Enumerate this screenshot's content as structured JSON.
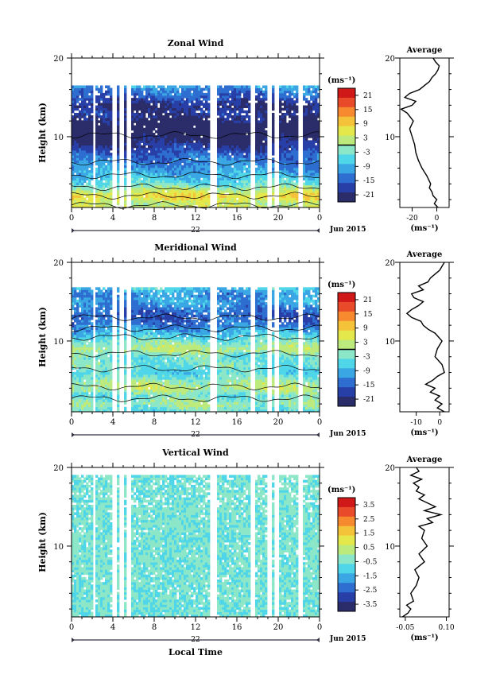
{
  "figure": {
    "date_label": "Jun 2015",
    "day_label": "22",
    "xlabel": "Local Time",
    "x_ticks": [
      "0",
      "4",
      "8",
      "12",
      "16",
      "20",
      "0"
    ],
    "height_ticks": [
      "20",
      "10"
    ],
    "units_label": "(ms⁻¹)",
    "avg_title": "Average",
    "avg_units": "(ms⁻¹)"
  },
  "chart_data": [
    {
      "type": "heatmap",
      "title": "Zonal Wind",
      "ylabel": "Height (km)",
      "xlim": [
        0,
        24
      ],
      "ylim": [
        1,
        20
      ],
      "colorbar": {
        "ticks": [
          "21",
          "15",
          "9",
          "3",
          "-3",
          "-9",
          "-15",
          "-21"
        ],
        "range": [
          -24,
          24
        ]
      },
      "data_top_km": 16.5,
      "gaps_hours": [
        2.2,
        4.1,
        4.9,
        5.6,
        13.7,
        13.9,
        17.6,
        19.1,
        19.8,
        22.1
      ],
      "profile_knots": [
        [
          1,
          5
        ],
        [
          1.5,
          2
        ],
        [
          2.5,
          8
        ],
        [
          3,
          4
        ],
        [
          4,
          -4
        ],
        [
          5,
          -8
        ],
        [
          6,
          -11
        ],
        [
          7,
          -13
        ],
        [
          8,
          -16
        ],
        [
          9,
          -20
        ],
        [
          10,
          -23
        ],
        [
          11,
          -25
        ],
        [
          12,
          -22
        ],
        [
          13,
          -19
        ],
        [
          14,
          -21
        ],
        [
          15,
          -16
        ],
        [
          16,
          -13
        ],
        [
          17,
          -5
        ],
        [
          18,
          -2
        ]
      ],
      "average": {
        "xlim": [
          -30,
          10
        ],
        "x_ticks": [
          "-20",
          "0"
        ],
        "y": [
          1,
          1.5,
          2,
          2.5,
          3,
          3.5,
          4,
          5,
          6,
          7,
          8,
          9,
          10,
          11,
          12,
          13,
          13.5,
          14,
          14.5,
          15,
          15.5,
          16,
          16.5,
          17,
          17.5,
          18,
          18.5,
          19,
          19.5,
          20
        ],
        "x": [
          1,
          -2,
          0,
          -3,
          -4,
          -6,
          -5,
          -8,
          -12,
          -15,
          -17,
          -18,
          -20,
          -22,
          -19,
          -24,
          -29,
          -20,
          -17,
          -26,
          -22,
          -14,
          -10,
          -6,
          -4,
          -1,
          1,
          2,
          -1,
          -3
        ]
      }
    },
    {
      "type": "heatmap",
      "title": "Meridional Wind",
      "ylabel": "Height (km)",
      "xlim": [
        0,
        24
      ],
      "ylim": [
        1,
        20
      ],
      "colorbar": {
        "ticks": [
          "21",
          "15",
          "9",
          "3",
          "-3",
          "-9",
          "-15",
          "-21"
        ],
        "range": [
          -24,
          24
        ]
      },
      "data_top_km": 16.7,
      "gaps_hours": [
        2.2,
        4.1,
        4.9,
        5.6,
        13.7,
        13.9,
        17.6,
        19.1,
        19.8,
        22.1
      ],
      "profile_knots": [
        [
          1,
          -5
        ],
        [
          2,
          0
        ],
        [
          3,
          -4
        ],
        [
          4,
          2
        ],
        [
          5,
          -1
        ],
        [
          6,
          -6
        ],
        [
          7,
          -3
        ],
        [
          8,
          -4
        ],
        [
          9,
          2
        ],
        [
          10,
          -3
        ],
        [
          11,
          -8
        ],
        [
          12,
          -13
        ],
        [
          13,
          -16
        ],
        [
          14,
          -14
        ],
        [
          15,
          -10
        ],
        [
          16,
          -12
        ],
        [
          17,
          -5
        ]
      ],
      "average": {
        "xlim": [
          -17,
          4
        ],
        "x_ticks": [
          "-10",
          "0"
        ],
        "y": [
          1,
          1.5,
          2,
          2.5,
          3,
          3.5,
          4,
          4.5,
          5,
          5.5,
          6,
          7,
          8,
          9,
          10,
          11,
          11.5,
          12,
          12.5,
          13,
          13.5,
          14,
          14.5,
          15,
          15.5,
          16,
          16.5,
          17,
          17.5,
          18,
          18.5,
          19,
          19.5,
          20
        ],
        "x": [
          2,
          -1,
          1,
          -2,
          0,
          -4,
          -2,
          -6,
          -3,
          -1,
          2,
          1,
          -2,
          -1,
          1,
          -2,
          -5,
          -7,
          -8,
          -12,
          -14,
          -12,
          -9,
          -7,
          -11,
          -12,
          -7,
          -9,
          -5,
          -4,
          -2,
          0,
          1,
          2
        ]
      }
    },
    {
      "type": "heatmap",
      "title": "Vertical Wind",
      "ylabel": "Height (km)",
      "xlim": [
        0,
        24
      ],
      "ylim": [
        1,
        20
      ],
      "colorbar": {
        "ticks": [
          "3.5",
          "2.5",
          "1.5",
          "0.5",
          "-0.5",
          "-1.5",
          "-2.5",
          "-3.5"
        ],
        "range": [
          -4,
          4
        ]
      },
      "data_top_km": 19.2,
      "gaps_hours": [
        2.2,
        4.1,
        4.9,
        5.6,
        13.7,
        13.9,
        17.6,
        19.1,
        19.8,
        22.1
      ],
      "profile_knots": [
        [
          1,
          -0.6
        ],
        [
          10,
          -0.5
        ],
        [
          20,
          -0.6
        ]
      ],
      "average": {
        "xlim": [
          -0.07,
          0.11
        ],
        "x_ticks": [
          "-0.05",
          "0.10"
        ],
        "y": [
          1,
          1.5,
          2,
          2.5,
          3,
          4,
          5,
          6,
          7,
          8,
          9,
          10,
          11,
          12,
          12.5,
          13,
          13.5,
          14,
          14.5,
          15,
          15.5,
          16,
          16.5,
          17,
          17.5,
          18,
          18.5,
          19,
          19.5,
          20
        ],
        "x": [
          -0.06,
          -0.04,
          -0.03,
          -0.045,
          -0.02,
          -0.03,
          -0.01,
          0.0,
          -0.015,
          0.02,
          0.0,
          0.03,
          0.01,
          0.02,
          0.0,
          0.05,
          0.03,
          0.08,
          0.02,
          0.06,
          0.03,
          0.0,
          0.02,
          -0.01,
          0.0,
          -0.02,
          0.01,
          -0.03,
          0.0,
          -0.01
        ]
      }
    }
  ]
}
